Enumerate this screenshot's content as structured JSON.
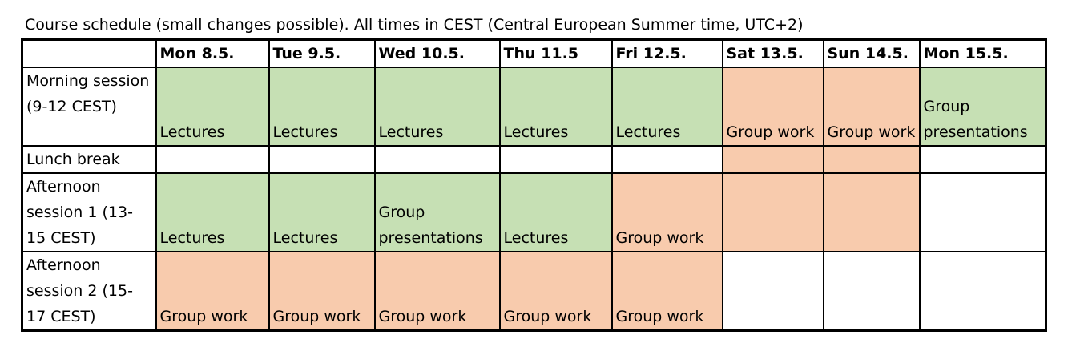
{
  "caption": "Course schedule (small changes possible). All times in CEST (Central European Summer time, UTC+2)",
  "colors": {
    "lecture_green": "#c6e0b4",
    "group_orange": "#f8cbad",
    "empty_white": "#ffffff"
  },
  "header": {
    "corner": "",
    "days": [
      "Mon 8.5.",
      "Tue 9.5.",
      "Wed 10.5.",
      "Thu 11.5",
      "Fri 12.5.",
      "Sat 13.5.",
      "Sun 14.5.",
      "Mon 15.5."
    ]
  },
  "rows": [
    {
      "label": "Morning session (9-12 CEST)",
      "cells": [
        {
          "text": "Lectures",
          "color": "green"
        },
        {
          "text": "Lectures",
          "color": "green"
        },
        {
          "text": "Lectures",
          "color": "green"
        },
        {
          "text": "Lectures",
          "color": "green"
        },
        {
          "text": "Lectures",
          "color": "green"
        },
        {
          "text": "Group work",
          "color": "orange"
        },
        {
          "text": "Group work",
          "color": "orange"
        },
        {
          "text": "Group presentations",
          "color": "green"
        }
      ]
    },
    {
      "label": "Lunch break",
      "cells": [
        {
          "text": "",
          "color": "white"
        },
        {
          "text": "",
          "color": "white"
        },
        {
          "text": "",
          "color": "white"
        },
        {
          "text": "",
          "color": "white"
        },
        {
          "text": "",
          "color": "white"
        },
        {
          "text": "",
          "color": "orange"
        },
        {
          "text": "",
          "color": "orange"
        },
        {
          "text": "",
          "color": "white"
        }
      ]
    },
    {
      "label": "Afternoon session 1 (13-15 CEST)",
      "cells": [
        {
          "text": "Lectures",
          "color": "green"
        },
        {
          "text": "Lectures",
          "color": "green"
        },
        {
          "text": "Group presentations",
          "color": "green"
        },
        {
          "text": "Lectures",
          "color": "green"
        },
        {
          "text": "Group work",
          "color": "orange"
        },
        {
          "text": "",
          "color": "orange"
        },
        {
          "text": "",
          "color": "orange"
        },
        {
          "text": "",
          "color": "white"
        }
      ]
    },
    {
      "label": "Afternoon session 2 (15-17 CEST)",
      "cells": [
        {
          "text": "Group work",
          "color": "orange"
        },
        {
          "text": "Group work",
          "color": "orange"
        },
        {
          "text": "Group work",
          "color": "orange"
        },
        {
          "text": "Group work",
          "color": "orange"
        },
        {
          "text": "Group work",
          "color": "orange"
        },
        {
          "text": "",
          "color": "white"
        },
        {
          "text": "",
          "color": "white"
        },
        {
          "text": "",
          "color": "white"
        }
      ]
    }
  ]
}
